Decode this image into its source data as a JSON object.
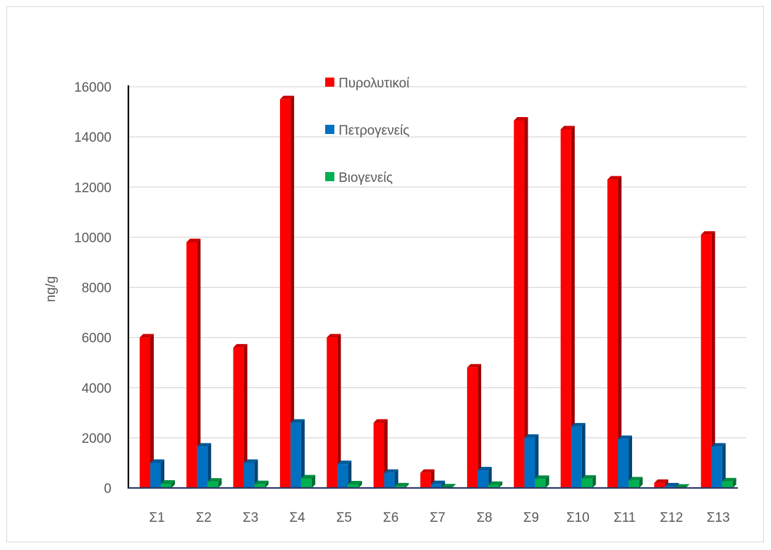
{
  "chart_data": {
    "type": "bar",
    "title": "",
    "xlabel": "",
    "ylabel": "ng/g",
    "ylim": [
      0,
      16000
    ],
    "yticks": [
      0,
      2000,
      4000,
      6000,
      8000,
      10000,
      12000,
      14000,
      16000
    ],
    "grid": "horizontal",
    "legend_position": "top-center",
    "categories": [
      "Σ1",
      "Σ2",
      "Σ3",
      "Σ4",
      "Σ5",
      "Σ6",
      "Σ7",
      "Σ8",
      "Σ9",
      "Σ10",
      "Σ11",
      "Σ12",
      "Σ13"
    ],
    "series": [
      {
        "name": "Πυρολυτικοί",
        "color": "#ff0000",
        "values": [
          6000,
          9800,
          5600,
          15500,
          6000,
          2600,
          600,
          4800,
          14650,
          14300,
          12300,
          200,
          10100
        ]
      },
      {
        "name": "Πετρογενείς",
        "color": "#0070c0",
        "values": [
          1000,
          1650,
          1000,
          2600,
          950,
          600,
          150,
          700,
          2000,
          2450,
          1950,
          60,
          1650
        ]
      },
      {
        "name": "Βιογενείς",
        "color": "#00b050",
        "values": [
          170,
          250,
          150,
          380,
          140,
          60,
          20,
          120,
          360,
          370,
          300,
          10,
          260
        ]
      }
    ]
  }
}
